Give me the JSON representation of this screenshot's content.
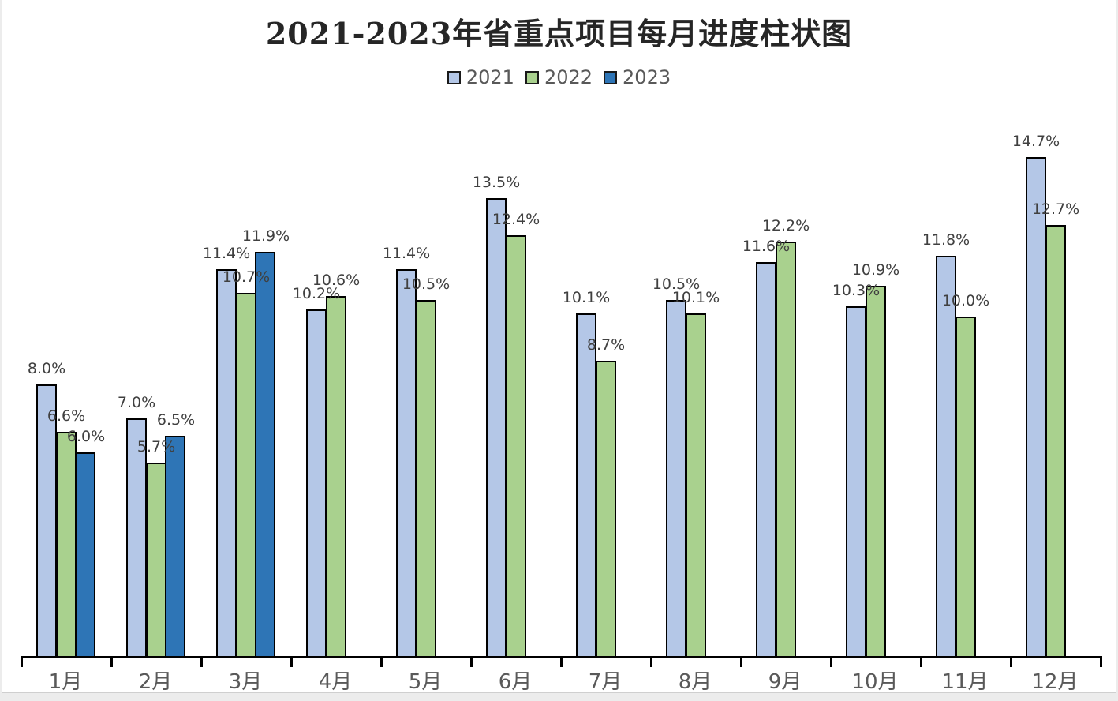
{
  "page": {
    "background_color": "#ececec",
    "canvas_color": "#ffffff"
  },
  "chart_data": {
    "type": "bar",
    "title": "2021-2023年省重点项目每月进度柱状图",
    "categories": [
      "1月",
      "2月",
      "3月",
      "4月",
      "5月",
      "6月",
      "7月",
      "8月",
      "9月",
      "10月",
      "11月",
      "12月"
    ],
    "series": [
      {
        "name": "2021",
        "color": "#b4c7e7",
        "values": [
          8.0,
          7.0,
          11.4,
          10.2,
          11.4,
          13.5,
          10.1,
          10.5,
          11.6,
          10.3,
          11.8,
          14.7
        ]
      },
      {
        "name": "2022",
        "color": "#a9d18e",
        "values": [
          6.6,
          5.7,
          10.7,
          10.6,
          10.5,
          12.4,
          8.7,
          10.1,
          12.2,
          10.9,
          10.0,
          12.7
        ]
      },
      {
        "name": "2023",
        "color": "#2e75b6",
        "values": [
          6.0,
          6.5,
          11.9,
          null,
          null,
          null,
          null,
          null,
          null,
          null,
          null,
          null
        ]
      }
    ],
    "value_suffix": "%",
    "label_decimals": 1,
    "ylim": [
      0,
      16
    ],
    "grid": false,
    "y_axis_visible": false,
    "legend_position": "top-center",
    "data_labels": "outside-end",
    "bar_border_color": "#000000",
    "axis_line_color": "#000000",
    "data_label_color": "#404040",
    "category_label_color": "#595959",
    "title_color": "#262626"
  }
}
